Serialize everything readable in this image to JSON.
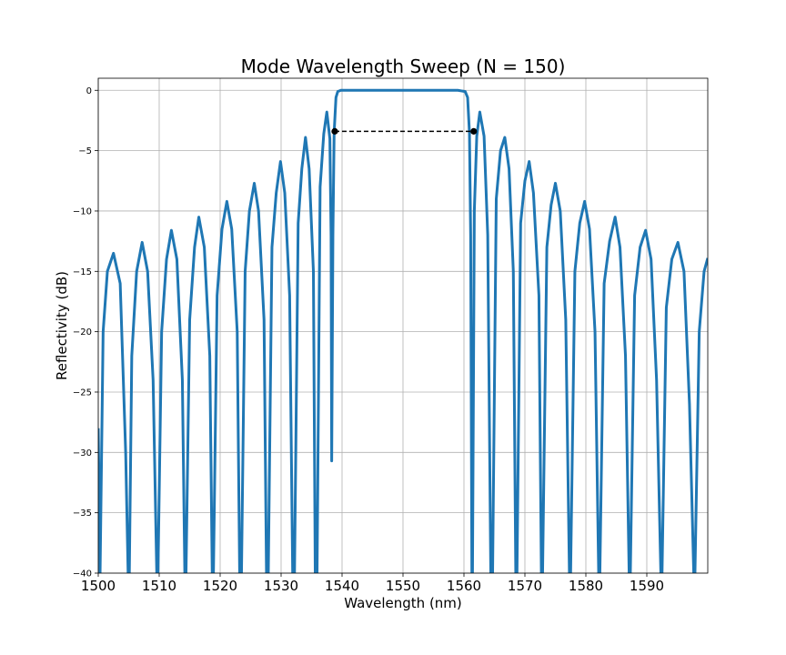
{
  "chart_data": {
    "type": "line",
    "title": "Mode Wavelength Sweep (N = 150)",
    "xlabel": "Wavelength (nm)",
    "ylabel": "Reflectivity (dB)",
    "xlim": [
      1500,
      1600
    ],
    "ylim": [
      -40,
      1
    ],
    "grid": true,
    "x_ticks": [
      1500,
      1510,
      1520,
      1530,
      1540,
      1550,
      1560,
      1570,
      1580,
      1590
    ],
    "y_ticks": [
      0,
      -5,
      -10,
      -15,
      -20,
      -25,
      -30,
      -35,
      -40
    ],
    "x_tick_labels": [
      "1500",
      "1510",
      "1520",
      "1530",
      "1540",
      "1550",
      "1560",
      "1570",
      "1580",
      "1590"
    ],
    "y_tick_labels": [
      "0",
      "−5",
      "−10",
      "−15",
      "−20",
      "−25",
      "−30",
      "−35",
      "−40"
    ],
    "series": [
      {
        "color": "#1f77b4",
        "x": [
          1500.0,
          1500.3,
          1500.8,
          1501.5,
          1502.5,
          1503.6,
          1504.5,
          1504.9,
          1505.0,
          1505.1,
          1505.5,
          1506.3,
          1507.2,
          1508.1,
          1509.0,
          1509.6,
          1509.7,
          1509.8,
          1510.4,
          1511.2,
          1512.0,
          1512.9,
          1513.8,
          1514.2,
          1514.3,
          1514.4,
          1515.0,
          1515.8,
          1516.5,
          1517.4,
          1518.3,
          1518.7,
          1518.8,
          1518.9,
          1519.5,
          1520.3,
          1521.1,
          1521.9,
          1522.8,
          1523.2,
          1523.4,
          1523.5,
          1524.1,
          1524.8,
          1525.6,
          1526.3,
          1527.2,
          1527.6,
          1527.8,
          1527.9,
          1528.5,
          1529.2,
          1529.9,
          1530.6,
          1531.4,
          1531.9,
          1532.1,
          1532.2,
          1532.8,
          1533.4,
          1534.0,
          1534.6,
          1535.3,
          1535.6,
          1535.8,
          1535.9,
          1536.4,
          1537.0,
          1537.5,
          1538.0,
          1538.2,
          1538.3,
          1538.5,
          1538.7,
          1539.0,
          1539.3,
          1539.8,
          1541.0,
          1545.0,
          1550.0,
          1555.0,
          1559.0,
          1560.2,
          1560.6,
          1560.9,
          1561.1,
          1561.3,
          1561.4,
          1561.7,
          1562.1,
          1562.6,
          1563.3,
          1563.9,
          1564.4,
          1564.6,
          1564.7,
          1565.3,
          1566.0,
          1566.7,
          1567.4,
          1568.1,
          1568.5,
          1568.6,
          1568.7,
          1569.3,
          1570.0,
          1570.7,
          1571.4,
          1572.3,
          1572.7,
          1572.8,
          1572.9,
          1573.6,
          1574.3,
          1575.0,
          1575.8,
          1576.7,
          1577.3,
          1577.4,
          1577.5,
          1578.2,
          1579.0,
          1579.8,
          1580.6,
          1581.5,
          1582.1,
          1582.2,
          1582.3,
          1583.0,
          1583.9,
          1584.8,
          1585.6,
          1586.5,
          1587.1,
          1587.2,
          1587.3,
          1588.0,
          1588.9,
          1589.8,
          1590.7,
          1591.6,
          1592.3,
          1592.4,
          1592.5,
          1593.2,
          1594.1,
          1595.1,
          1596.1,
          1597.0,
          1597.7,
          1597.8,
          1597.9,
          1598.6,
          1599.4,
          1600.0
        ],
        "values": [
          -28,
          -40,
          -20,
          -15,
          -13.5,
          -16,
          -30,
          -40,
          -40,
          -40,
          -22,
          -15,
          -12.6,
          -15,
          -24,
          -40,
          -40,
          -40,
          -20,
          -14,
          -11.6,
          -14,
          -24,
          -40,
          -40,
          -40,
          -19,
          -13,
          -10.5,
          -13,
          -22,
          -40,
          -40,
          -40,
          -17,
          -11.5,
          -9.2,
          -11.5,
          -20,
          -40,
          -40,
          -40,
          -15,
          -10,
          -7.7,
          -10,
          -19,
          -40,
          -40,
          -40,
          -13,
          -8.5,
          -5.9,
          -8.5,
          -17,
          -40,
          -40,
          -40,
          -11,
          -6.5,
          -3.9,
          -6.5,
          -15,
          -40,
          -40,
          -40,
          -8,
          -3.6,
          -1.8,
          -4,
          -12,
          -30.7,
          -12,
          -3.5,
          -0.6,
          -0.1,
          0,
          0,
          0,
          0,
          0,
          0,
          -0.1,
          -0.6,
          -3.5,
          -12,
          -40,
          -40,
          -10,
          -3.8,
          -1.8,
          -3.8,
          -12,
          -40,
          -40,
          -40,
          -9,
          -5,
          -3.9,
          -6.5,
          -15,
          -40,
          -40,
          -40,
          -11,
          -7.5,
          -5.9,
          -8.5,
          -17,
          -40,
          -40,
          -40,
          -13,
          -9.5,
          -7.7,
          -10,
          -19,
          -40,
          -40,
          -40,
          -15,
          -11,
          -9.2,
          -11.5,
          -20,
          -40,
          -40,
          -40,
          -16,
          -12.5,
          -10.5,
          -13,
          -22,
          -40,
          -40,
          -40,
          -17,
          -13,
          -11.6,
          -14,
          -24,
          -40,
          -40,
          -40,
          -18,
          -14,
          -12.6,
          -15,
          -26,
          -40,
          -40,
          -40,
          -20,
          -15,
          -13.9
        ]
      }
    ],
    "annotation": {
      "style": "dashed",
      "color": "#000000",
      "x": [
        1538.8,
        1561.6
      ],
      "y": [
        -3.4,
        -3.4
      ]
    }
  }
}
